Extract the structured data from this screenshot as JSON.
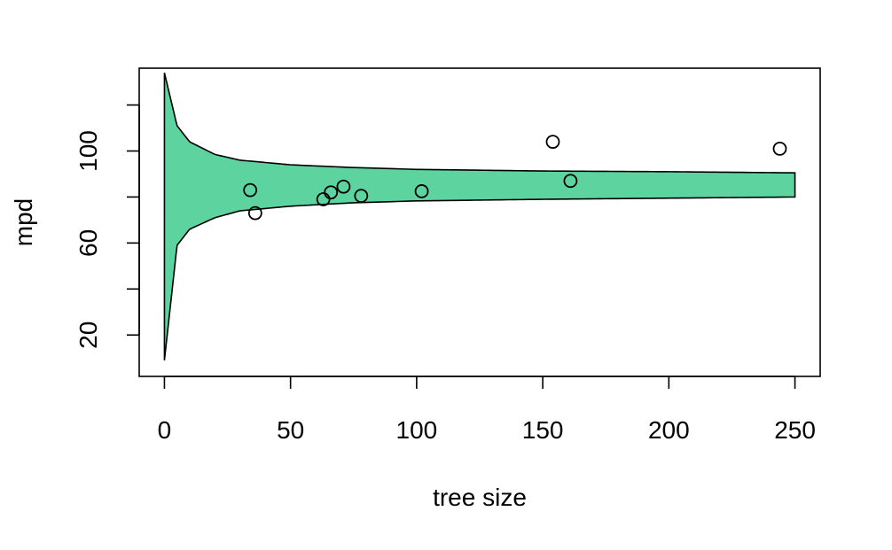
{
  "chart_data": {
    "type": "scatter",
    "title": "",
    "xlabel": "tree size",
    "ylabel": "mpd",
    "xlim": [
      -10,
      260
    ],
    "ylim": [
      2,
      136
    ],
    "x_ticks": [
      0,
      50,
      100,
      150,
      200,
      250
    ],
    "x_tick_labels": [
      "0",
      "50",
      "100",
      "150",
      "200",
      "250"
    ],
    "y_ticks": [
      20,
      40,
      60,
      80,
      100,
      120
    ],
    "y_tick_labels": [
      "20",
      "",
      "60",
      "",
      "100",
      ""
    ],
    "grid": false,
    "band": {
      "center": 85,
      "x_max": 250,
      "fill_color": "#5dd3a0",
      "description_x": [
        0,
        5,
        10,
        20,
        30,
        50,
        75,
        100,
        150,
        200,
        250
      ],
      "upper": [
        134,
        111,
        104,
        98.5,
        96,
        94,
        92.8,
        92,
        91.3,
        91,
        90.5
      ],
      "lower": [
        9,
        59,
        66,
        71,
        74,
        76,
        77.5,
        78.3,
        79,
        79.5,
        80
      ]
    },
    "points": [
      {
        "x": 34,
        "y": 83
      },
      {
        "x": 36,
        "y": 73
      },
      {
        "x": 63,
        "y": 79
      },
      {
        "x": 66,
        "y": 82
      },
      {
        "x": 71,
        "y": 84.5
      },
      {
        "x": 78,
        "y": 80.5
      },
      {
        "x": 102,
        "y": 82.5
      },
      {
        "x": 154,
        "y": 104
      },
      {
        "x": 161,
        "y": 87
      },
      {
        "x": 244,
        "y": 101
      }
    ]
  }
}
